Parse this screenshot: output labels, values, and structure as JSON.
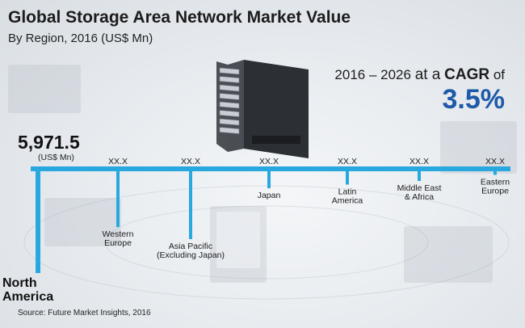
{
  "title": "Global Storage Area Network Market Value",
  "subtitle": "By Region, 2016 (US$ Mn)",
  "cagr": {
    "prefix": "2016 – 2026",
    "middle": "at a",
    "word": "CAGR",
    "suffix": "of",
    "value": "3.5%"
  },
  "highlight": {
    "value": "5,971.5",
    "unit": "(US$ Mn)"
  },
  "source": "Source: Future Market Insights, 2016",
  "colors": {
    "accent": "#1e5aa8",
    "bar": "#29a8e0"
  },
  "chart_data": {
    "type": "bar",
    "title": "Global Storage Area Network Market Value",
    "subtitle": "By Region, 2016 (US$ Mn)",
    "categories": [
      [
        "North",
        "America"
      ],
      [
        "Western",
        "Europe"
      ],
      [
        "Asia Pacific",
        "(Excluding Japan)"
      ],
      [
        "Japan"
      ],
      [
        "Latin",
        "America"
      ],
      [
        "Middle East",
        "& Africa"
      ],
      [
        "Eastern",
        "Europe"
      ]
    ],
    "value_labels": [
      "5,971.5",
      "XX.X",
      "XX.X",
      "XX.X",
      "XX.X",
      "XX.X",
      "XX.X"
    ],
    "values": [
      5971.5,
      null,
      null,
      null,
      null,
      null,
      null
    ],
    "relative_drop": [
      0.86,
      0.48,
      0.58,
      0.16,
      0.13,
      0.1,
      0.05
    ],
    "unit": "US$ Mn"
  }
}
